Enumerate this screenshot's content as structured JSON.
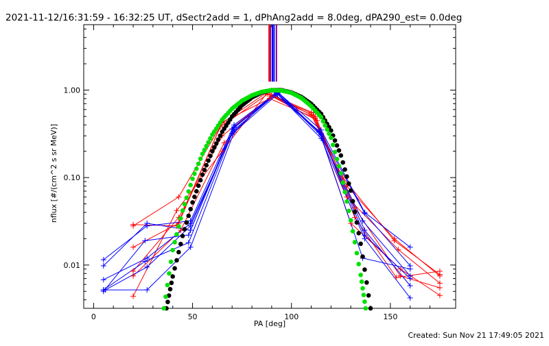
{
  "page": {
    "title": "2021-11-12/16:31:59 - 16:32:25 UT, dSectr2add = 1, dPhAng2add = 8.0deg, dPA290_est=  0.0deg",
    "footer": "Created: Sun Nov 21 17:49:05 2021"
  },
  "chart_data": {
    "type": "line",
    "xlabel": "PA [deg]",
    "ylabel": "nflux [#/(cm^2 s sr MeV)]",
    "xlim": [
      -5,
      183
    ],
    "ylim": [
      0.0032,
      5.6
    ],
    "log_y": true,
    "x_ticks": [
      {
        "v": 0,
        "label": "0"
      },
      {
        "v": 50,
        "label": "50"
      },
      {
        "v": 100,
        "label": "100"
      },
      {
        "v": 150,
        "label": "150"
      }
    ],
    "y_ticks": [
      {
        "v": 1.0,
        "label": "1.00"
      },
      {
        "v": 0.1,
        "label": "0.10"
      },
      {
        "v": 0.01,
        "label": "0.01"
      }
    ],
    "colors": {
      "red": "#ff0000",
      "blue": "#0000ff",
      "black": "#000000",
      "green": "#00e000",
      "purple": "#800080"
    },
    "vertical_markers": [
      {
        "x": 88.7,
        "color": "#ff0000"
      },
      {
        "x": 89.4,
        "color": "#800080"
      },
      {
        "x": 90.4,
        "color": "#0000ff"
      },
      {
        "x": 91.2,
        "color": "#0000ff"
      },
      {
        "x": 92.4,
        "color": "#800080"
      }
    ],
    "series": [
      {
        "color": "#ff0000",
        "points": [
          [
            20,
            0.028
          ],
          [
            43,
            0.06
          ],
          [
            65,
            0.42
          ],
          [
            87,
            0.92
          ],
          [
            110,
            0.55
          ],
          [
            128,
            0.08
          ],
          [
            152,
            0.02
          ],
          [
            175,
            0.0075
          ]
        ]
      },
      {
        "color": "#ff0000",
        "points": [
          [
            20,
            0.0085
          ],
          [
            43,
            0.035
          ],
          [
            65,
            0.3
          ],
          [
            90,
            0.85
          ],
          [
            112,
            0.5
          ],
          [
            132,
            0.045
          ],
          [
            155,
            0.0075
          ],
          [
            175,
            0.0055
          ]
        ]
      },
      {
        "color": "#ff0000",
        "points": [
          [
            20,
            0.0044
          ],
          [
            42,
            0.042
          ],
          [
            65,
            0.2
          ],
          [
            88,
            0.95
          ],
          [
            110,
            0.52
          ],
          [
            126,
            0.1
          ],
          [
            152,
            0.019
          ],
          [
            175,
            0.0078
          ]
        ]
      },
      {
        "color": "#ff0000",
        "points": [
          [
            20,
            0.016
          ],
          [
            43,
            0.03
          ],
          [
            65,
            0.43
          ],
          [
            89,
            0.8
          ],
          [
            112,
            0.48
          ],
          [
            130,
            0.03
          ],
          [
            155,
            0.009
          ],
          [
            175,
            0.0045
          ]
        ]
      },
      {
        "color": "#ff0000",
        "points": [
          [
            20,
            0.0075
          ],
          [
            44,
            0.025
          ],
          [
            66,
            0.25
          ],
          [
            90,
            0.88
          ],
          [
            111,
            0.55
          ],
          [
            128,
            0.06
          ],
          [
            154,
            0.015
          ],
          [
            175,
            0.0062
          ]
        ]
      },
      {
        "color": "#ff0000",
        "points": [
          [
            20,
            0.029
          ],
          [
            42,
            0.028
          ],
          [
            64,
            0.38
          ],
          [
            88,
            0.9
          ],
          [
            113,
            0.45
          ],
          [
            132,
            0.035
          ],
          [
            153,
            0.0072
          ],
          [
            175,
            0.0085
          ]
        ]
      },
      {
        "color": "#0000ff",
        "points": [
          [
            5,
            0.0115
          ],
          [
            27,
            0.028
          ],
          [
            49,
            0.032
          ],
          [
            71,
            0.4
          ],
          [
            93,
            0.95
          ],
          [
            115,
            0.35
          ],
          [
            137,
            0.04
          ],
          [
            160,
            0.016
          ]
        ]
      },
      {
        "color": "#0000ff",
        "points": [
          [
            5,
            0.0098
          ],
          [
            27,
            0.03
          ],
          [
            49,
            0.025
          ],
          [
            71,
            0.38
          ],
          [
            93,
            0.92
          ],
          [
            115,
            0.32
          ],
          [
            137,
            0.039
          ],
          [
            160,
            0.0098
          ]
        ]
      },
      {
        "color": "#0000ff",
        "points": [
          [
            5,
            0.0052
          ],
          [
            27,
            0.0052
          ],
          [
            49,
            0.016
          ],
          [
            71,
            0.33
          ],
          [
            93,
            0.9
          ],
          [
            115,
            0.28
          ],
          [
            137,
            0.02
          ],
          [
            160,
            0.0042
          ]
        ]
      },
      {
        "color": "#0000ff",
        "points": [
          [
            5,
            0.0068
          ],
          [
            27,
            0.012
          ],
          [
            49,
            0.03
          ],
          [
            71,
            0.35
          ],
          [
            93,
            0.93
          ],
          [
            115,
            0.3
          ],
          [
            137,
            0.025
          ],
          [
            160,
            0.0058
          ]
        ]
      },
      {
        "color": "#0000ff",
        "points": [
          [
            5,
            0.005
          ],
          [
            26,
            0.019
          ],
          [
            48,
            0.022
          ],
          [
            70,
            0.36
          ],
          [
            92,
            0.88
          ],
          [
            114,
            0.34
          ],
          [
            136,
            0.012
          ],
          [
            160,
            0.009
          ]
        ]
      },
      {
        "color": "#0000ff",
        "points": [
          [
            5,
            0.0052
          ],
          [
            26,
            0.011
          ],
          [
            48,
            0.018
          ],
          [
            70,
            0.32
          ],
          [
            92,
            0.94
          ],
          [
            114,
            0.33
          ],
          [
            136,
            0.032
          ],
          [
            160,
            0.0075
          ]
        ]
      },
      {
        "color": "#0000ff",
        "points": [
          [
            6,
            0.0052
          ],
          [
            27,
            0.0095
          ],
          [
            49,
            0.028
          ],
          [
            71,
            0.37
          ],
          [
            93,
            0.96
          ],
          [
            115,
            0.31
          ],
          [
            137,
            0.022
          ],
          [
            160,
            0.007
          ]
        ]
      }
    ],
    "dotted_curves": [
      {
        "color": "#000000",
        "points": [
          [
            36.8,
            0.0032
          ],
          [
            40,
            0.0074
          ],
          [
            45,
            0.0215
          ],
          [
            50,
            0.052
          ],
          [
            55,
            0.108
          ],
          [
            60,
            0.2
          ],
          [
            65,
            0.334
          ],
          [
            70,
            0.5
          ],
          [
            75,
            0.67
          ],
          [
            80,
            0.825
          ],
          [
            85,
            0.94
          ],
          [
            90,
            1.0
          ],
          [
            95,
            0.998
          ],
          [
            100,
            0.94
          ],
          [
            105,
            0.835
          ],
          [
            110,
            0.695
          ],
          [
            115,
            0.535
          ],
          [
            120,
            0.345
          ],
          [
            125,
            0.179
          ],
          [
            130,
            0.071
          ],
          [
            135,
            0.0175
          ],
          [
            140,
            0.0032
          ]
        ]
      },
      {
        "color": "#00e000",
        "points": [
          [
            35.5,
            0.0032
          ],
          [
            40,
            0.0148
          ],
          [
            45,
            0.042
          ],
          [
            50,
            0.097
          ],
          [
            55,
            0.187
          ],
          [
            60,
            0.31
          ],
          [
            65,
            0.46
          ],
          [
            70,
            0.615
          ],
          [
            75,
            0.755
          ],
          [
            80,
            0.87
          ],
          [
            85,
            0.955
          ],
          [
            90,
            0.998
          ],
          [
            95,
            0.99
          ],
          [
            100,
            0.93
          ],
          [
            105,
            0.815
          ],
          [
            110,
            0.655
          ],
          [
            115,
            0.49
          ],
          [
            120,
            0.285
          ],
          [
            125,
            0.112
          ],
          [
            130,
            0.0325
          ],
          [
            135,
            0.0077
          ],
          [
            137.5,
            0.0032
          ]
        ]
      }
    ]
  }
}
